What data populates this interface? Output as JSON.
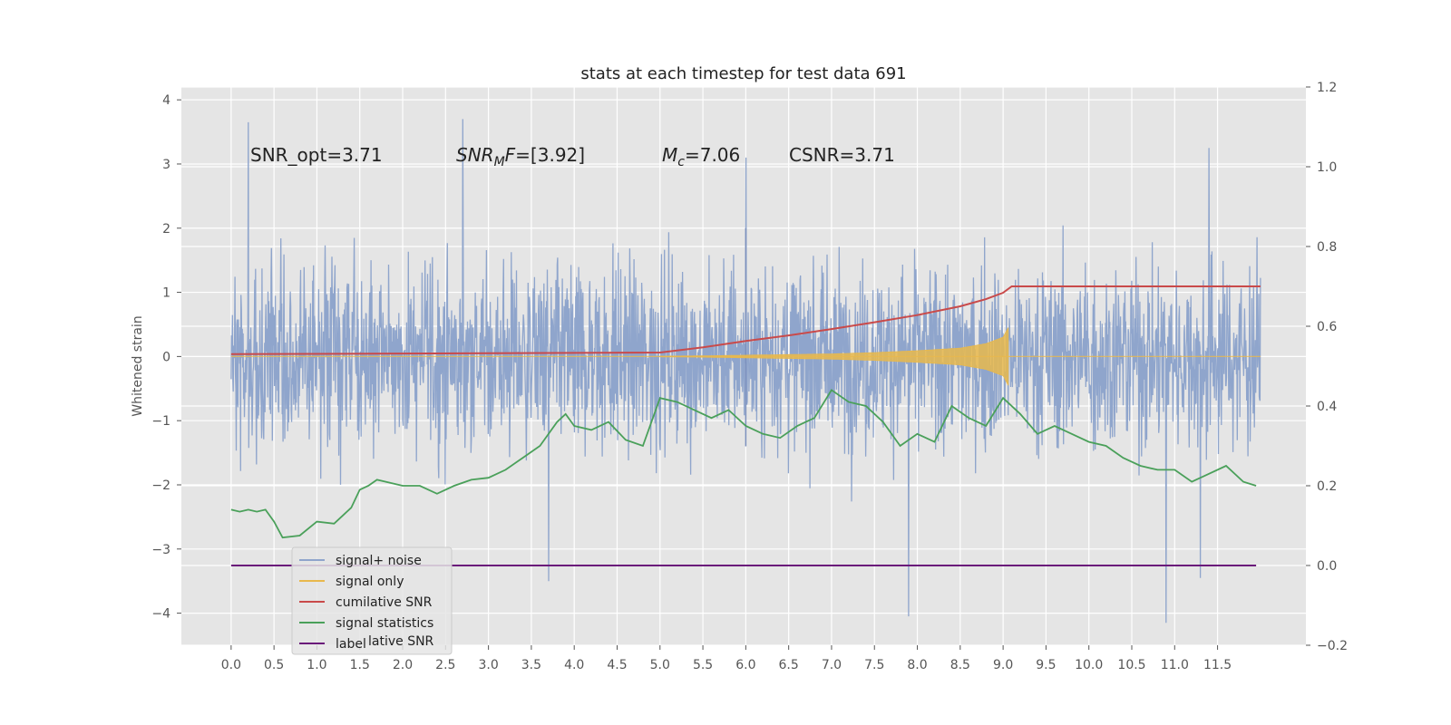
{
  "chart_data": {
    "type": "line",
    "title": "stats at each timestep for test data 691",
    "ylabel": "Whitened strain",
    "xlabel": "",
    "xlim": [
      -0.58,
      12.53
    ],
    "ylim_left": [
      -4.5,
      4.2
    ],
    "ylim_right": [
      -0.2,
      1.2
    ],
    "x_ticks": [
      0.0,
      0.5,
      1.0,
      1.5,
      2.0,
      2.5,
      3.0,
      3.5,
      4.0,
      4.5,
      5.0,
      5.5,
      6.0,
      6.5,
      7.0,
      7.5,
      8.0,
      8.5,
      9.0,
      9.5,
      10.0,
      10.5,
      11.0,
      11.5
    ],
    "x_tick_labels": [
      "0.0",
      "0.5",
      "1.0",
      "1.5",
      "2.0",
      "2.5",
      "3.0",
      "3.5",
      "4.0",
      "4.5",
      "5.0",
      "5.5",
      "6.0",
      "6.5",
      "7.0",
      "7.5",
      "8.0",
      "8.5",
      "9.0",
      "9.5",
      "10.0",
      "10.5",
      "11.0",
      "11.5"
    ],
    "y_ticks_left": [
      -4,
      -3,
      -2,
      -1,
      0,
      1,
      2,
      3,
      4
    ],
    "y_tick_labels_left": [
      "−4",
      "−3",
      "−2",
      "−1",
      "0",
      "1",
      "2",
      "3",
      "4"
    ],
    "y_ticks_right": [
      -0.2,
      0.0,
      0.2,
      0.4,
      0.6,
      0.8,
      1.0,
      1.2
    ],
    "y_tick_labels_right": [
      "−0.2",
      "0.0",
      "0.2",
      "0.4",
      "0.6",
      "0.8",
      "1.0",
      "1.2"
    ],
    "grid": true,
    "legend_position": "lower-left",
    "annotations": [
      {
        "text": "SNR_opt=3.71",
        "x": 0.2,
        "y": 3.0
      },
      {
        "text": "SNR_MF=[3.92]",
        "x": 2.6,
        "y": 3.0
      },
      {
        "text": "M_c=7.06",
        "x": 5.0,
        "y": 3.0
      },
      {
        "text": "CSNR=3.71",
        "x": 6.5,
        "y": 3.0
      }
    ],
    "series": [
      {
        "name": "signal+ noise",
        "axis": "left",
        "color": "#8fa5cc",
        "description_note": "",
        "x_range": [
          0.0,
          12.0
        ],
        "max_peaks": [
          [
            0.2,
            3.65
          ],
          [
            2.7,
            3.7
          ],
          [
            6.0,
            3.1
          ],
          [
            11.4,
            3.25
          ]
        ],
        "min_peaks": [
          [
            3.7,
            -3.5
          ],
          [
            7.9,
            -4.05
          ],
          [
            10.9,
            -4.15
          ],
          [
            11.3,
            -3.45
          ]
        ]
      },
      {
        "name": "signal only",
        "axis": "left",
        "color": "#e8b84c",
        "envelope": {
          "x": [
            0.0,
            5.0,
            5.5,
            6.0,
            6.5,
            7.0,
            7.5,
            8.0,
            8.5,
            8.8,
            9.0,
            9.06,
            9.07,
            12.0
          ],
          "amp": [
            0.0,
            0.005,
            0.01,
            0.02,
            0.03,
            0.04,
            0.06,
            0.09,
            0.13,
            0.2,
            0.3,
            0.45,
            0.0,
            0.0
          ]
        }
      },
      {
        "name": "cumilative SNR",
        "axis": "right",
        "color": "#c94a4a",
        "x": [
          0.0,
          5.0,
          5.5,
          6.0,
          6.5,
          7.0,
          7.5,
          8.0,
          8.5,
          8.8,
          9.0,
          9.1,
          12.0
        ],
        "y": [
          0.53,
          0.534,
          0.547,
          0.563,
          0.577,
          0.593,
          0.61,
          0.628,
          0.65,
          0.668,
          0.684,
          0.7,
          0.7
        ]
      },
      {
        "name": "signal statistics",
        "axis": "right",
        "color": "#4aa05a",
        "x": [
          0.0,
          0.1,
          0.2,
          0.3,
          0.4,
          0.5,
          0.6,
          0.8,
          1.0,
          1.2,
          1.4,
          1.5,
          1.6,
          1.7,
          2.0,
          2.2,
          2.4,
          2.6,
          2.8,
          3.0,
          3.2,
          3.4,
          3.6,
          3.8,
          3.9,
          4.0,
          4.2,
          4.4,
          4.6,
          4.8,
          5.0,
          5.2,
          5.4,
          5.6,
          5.8,
          6.0,
          6.2,
          6.4,
          6.6,
          6.8,
          7.0,
          7.2,
          7.4,
          7.6,
          7.8,
          8.0,
          8.2,
          8.4,
          8.6,
          8.8,
          9.0,
          9.2,
          9.4,
          9.6,
          9.8,
          10.0,
          10.2,
          10.4,
          10.6,
          10.8,
          11.0,
          11.2,
          11.4,
          11.6,
          11.8,
          11.95
        ],
        "y": [
          0.14,
          0.135,
          0.14,
          0.135,
          0.14,
          0.11,
          0.07,
          0.075,
          0.11,
          0.105,
          0.145,
          0.19,
          0.2,
          0.215,
          0.2,
          0.2,
          0.18,
          0.2,
          0.215,
          0.22,
          0.24,
          0.27,
          0.3,
          0.36,
          0.38,
          0.35,
          0.34,
          0.36,
          0.315,
          0.3,
          0.42,
          0.41,
          0.39,
          0.37,
          0.39,
          0.35,
          0.33,
          0.32,
          0.35,
          0.37,
          0.44,
          0.41,
          0.4,
          0.36,
          0.3,
          0.33,
          0.31,
          0.4,
          0.37,
          0.35,
          0.42,
          0.38,
          0.33,
          0.35,
          0.33,
          0.31,
          0.3,
          0.27,
          0.25,
          0.24,
          0.24,
          0.21,
          0.23,
          0.25,
          0.21,
          0.2
        ]
      },
      {
        "name": "label",
        "axis": "right",
        "color": "#6a1a7a",
        "x": [
          0.0,
          11.95
        ],
        "y": [
          0.0,
          0.0
        ]
      }
    ],
    "legend_faded_text": "lative SNR"
  }
}
